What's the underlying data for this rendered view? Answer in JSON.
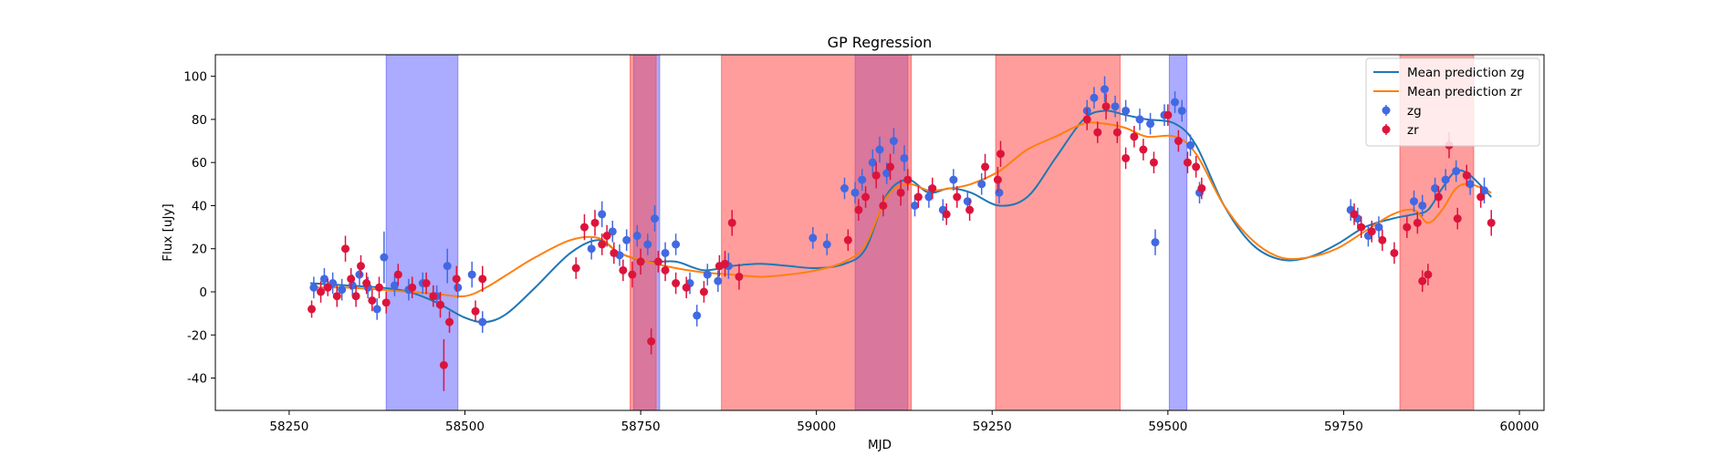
{
  "chart_data": {
    "type": "scatter",
    "title": "GP Regression",
    "xlabel": "MJD",
    "ylabel": "Flux [uJy]",
    "xlim": [
      58145,
      60035
    ],
    "ylim": [
      -55,
      110
    ],
    "xticks": [
      58250,
      58500,
      58750,
      59000,
      59250,
      59500,
      59750,
      60000
    ],
    "yticks": [
      -40,
      -20,
      0,
      20,
      40,
      60,
      80,
      100
    ],
    "legend_position": "top-right",
    "colors": {
      "zg_line": "#1f77b4",
      "zr_line": "#ff7f0e",
      "zg_points": "#4169e1",
      "zr_points": "#dc143c",
      "zg_band": "#6666ff",
      "zr_band": "#ff4d4d"
    },
    "legend": [
      {
        "label": "Mean prediction zg",
        "kind": "line",
        "color": "#1f77b4"
      },
      {
        "label": "Mean prediction zr",
        "kind": "line",
        "color": "#ff7f0e"
      },
      {
        "label": "zg",
        "kind": "point",
        "color": "#4169e1"
      },
      {
        "label": "zr",
        "kind": "point",
        "color": "#dc143c"
      }
    ],
    "shaded_intervals": [
      {
        "band": "zg",
        "x0": 58388,
        "x1": 58490
      },
      {
        "band": "zg",
        "x0": 58740,
        "x1": 58777
      },
      {
        "band": "zg",
        "x0": 59055,
        "x1": 59130
      },
      {
        "band": "zg",
        "x0": 59502,
        "x1": 59527
      },
      {
        "band": "zr",
        "x0": 58735,
        "x1": 58772
      },
      {
        "band": "zr",
        "x0": 58865,
        "x1": 59135
      },
      {
        "band": "zr",
        "x0": 59255,
        "x1": 59432
      },
      {
        "band": "zr",
        "x0": 59830,
        "x1": 59935
      }
    ],
    "series": [
      {
        "name": "Mean prediction zg",
        "type": "line",
        "x": [
          58280,
          58330,
          58380,
          58420,
          58460,
          58500,
          58530,
          58560,
          58600,
          58650,
          58690,
          58720,
          58760,
          58800,
          58840,
          58880,
          58920,
          58960,
          59000,
          59040,
          59070,
          59100,
          59130,
          59160,
          59190,
          59220,
          59260,
          59300,
          59340,
          59380,
          59410,
          59440,
          59470,
          59510,
          59540,
          59580,
          59620,
          59660,
          59700,
          59740,
          59780,
          59820,
          59850,
          59870,
          59890,
          59910,
          59930,
          59960
        ],
        "y": [
          4,
          3,
          2,
          0,
          -5,
          -12,
          -14,
          -10,
          2,
          18,
          24,
          18,
          14,
          14,
          10,
          12,
          13,
          12,
          11,
          13,
          20,
          45,
          52,
          46,
          48,
          46,
          40,
          44,
          62,
          80,
          84,
          82,
          80,
          78,
          68,
          40,
          22,
          15,
          16,
          22,
          30,
          34,
          36,
          38,
          48,
          56,
          54,
          44
        ]
      },
      {
        "name": "Mean prediction zr",
        "type": "line",
        "x": [
          58280,
          58330,
          58380,
          58420,
          58460,
          58500,
          58530,
          58560,
          58600,
          58650,
          58690,
          58720,
          58760,
          58800,
          58840,
          58880,
          58920,
          58960,
          59000,
          59040,
          59070,
          59100,
          59130,
          59160,
          59190,
          59220,
          59260,
          59300,
          59340,
          59380,
          59410,
          59440,
          59470,
          59510,
          59540,
          59580,
          59620,
          59660,
          59700,
          59740,
          59780,
          59820,
          59850,
          59870,
          59890,
          59910,
          59930,
          59960
        ],
        "y": [
          2,
          2,
          1,
          0,
          -1,
          -2,
          2,
          8,
          16,
          24,
          25,
          18,
          14,
          11,
          9,
          8,
          7,
          8,
          10,
          14,
          22,
          44,
          50,
          47,
          48,
          50,
          56,
          66,
          72,
          78,
          78,
          76,
          72,
          72,
          64,
          40,
          24,
          16,
          16,
          20,
          28,
          36,
          38,
          32,
          38,
          48,
          50,
          46
        ]
      },
      {
        "name": "zg",
        "type": "scatter",
        "x": [
          58285,
          58300,
          58312,
          58325,
          58340,
          58350,
          58362,
          58375,
          58385,
          58400,
          58420,
          58440,
          58460,
          58475,
          58490,
          58510,
          58525,
          58680,
          58695,
          58710,
          58720,
          58730,
          58745,
          58760,
          58770,
          58785,
          58800,
          58820,
          58830,
          58845,
          58860,
          58875,
          58995,
          59015,
          59040,
          59055,
          59065,
          59080,
          59090,
          59100,
          59110,
          59125,
          59140,
          59160,
          59180,
          59195,
          59215,
          59235,
          59260,
          59385,
          59395,
          59410,
          59425,
          59440,
          59460,
          59475,
          59482,
          59495,
          59510,
          59520,
          59532,
          59545,
          59760,
          59770,
          59785,
          59800,
          59850,
          59862,
          59880,
          59895,
          59910,
          59930,
          59950
        ],
        "y": [
          2,
          6,
          4,
          1,
          3,
          8,
          2,
          -8,
          16,
          3,
          1,
          4,
          -2,
          12,
          2,
          8,
          -14,
          20,
          36,
          28,
          17,
          24,
          26,
          22,
          34,
          18,
          22,
          4,
          -11,
          8,
          5,
          12,
          25,
          22,
          48,
          46,
          52,
          60,
          66,
          55,
          70,
          62,
          40,
          44,
          38,
          52,
          42,
          50,
          46,
          84,
          90,
          94,
          86,
          84,
          80,
          78,
          23,
          82,
          88,
          84,
          68,
          46,
          38,
          34,
          26,
          30,
          42,
          40,
          48,
          52,
          56,
          50,
          47
        ],
        "yerr": [
          5,
          5,
          5,
          5,
          5,
          5,
          5,
          5,
          12,
          5,
          5,
          5,
          5,
          8,
          5,
          6,
          5,
          5,
          6,
          5,
          5,
          5,
          5,
          5,
          6,
          5,
          5,
          5,
          5,
          5,
          5,
          6,
          5,
          5,
          5,
          5,
          5,
          6,
          6,
          5,
          6,
          6,
          5,
          5,
          5,
          5,
          5,
          5,
          5,
          5,
          5,
          6,
          5,
          5,
          5,
          5,
          6,
          5,
          5,
          5,
          5,
          5,
          5,
          5,
          5,
          5,
          5,
          5,
          5,
          5,
          5,
          5,
          6
        ]
      },
      {
        "name": "zr",
        "type": "scatter",
        "x": [
          58282,
          58295,
          58305,
          58318,
          58330,
          58338,
          58345,
          58352,
          58360,
          58368,
          58378,
          58388,
          58405,
          58425,
          58445,
          58455,
          58465,
          58470,
          58478,
          58488,
          58515,
          58525,
          58658,
          58670,
          58685,
          58695,
          58702,
          58712,
          58725,
          58738,
          58750,
          58765,
          58775,
          58785,
          58800,
          58815,
          58840,
          58862,
          58870,
          58880,
          58890,
          59045,
          59060,
          59070,
          59085,
          59095,
          59105,
          59120,
          59130,
          59145,
          59165,
          59185,
          59200,
          59218,
          59240,
          59258,
          59262,
          59385,
          59400,
          59412,
          59428,
          59440,
          59452,
          59465,
          59480,
          59500,
          59515,
          59528,
          59540,
          59548,
          59765,
          59775,
          59790,
          59805,
          59822,
          59840,
          59855,
          59862,
          59870,
          59885,
          59900,
          59912,
          59925,
          59945,
          59960
        ],
        "y": [
          -8,
          0,
          2,
          -2,
          20,
          6,
          -2,
          12,
          4,
          -4,
          2,
          -5,
          8,
          2,
          4,
          -2,
          -6,
          -34,
          -14,
          6,
          -9,
          6,
          11,
          30,
          32,
          22,
          26,
          18,
          10,
          8,
          14,
          -23,
          14,
          10,
          4,
          2,
          0,
          12,
          13,
          32,
          7,
          24,
          38,
          44,
          54,
          40,
          58,
          46,
          52,
          44,
          48,
          36,
          44,
          38,
          58,
          52,
          64,
          80,
          74,
          86,
          74,
          62,
          72,
          66,
          60,
          82,
          70,
          60,
          58,
          48,
          36,
          30,
          28,
          24,
          18,
          30,
          32,
          5,
          8,
          44,
          68,
          34,
          54,
          44,
          32
        ],
        "yerr": [
          4,
          5,
          4,
          5,
          6,
          5,
          5,
          5,
          5,
          5,
          5,
          5,
          5,
          5,
          5,
          5,
          6,
          12,
          5,
          6,
          5,
          6,
          5,
          6,
          6,
          5,
          5,
          5,
          5,
          6,
          6,
          6,
          5,
          5,
          5,
          5,
          5,
          5,
          6,
          6,
          6,
          5,
          5,
          5,
          6,
          5,
          6,
          6,
          5,
          5,
          5,
          5,
          5,
          5,
          6,
          6,
          6,
          5,
          5,
          6,
          5,
          5,
          5,
          5,
          5,
          5,
          5,
          5,
          5,
          5,
          5,
          5,
          5,
          5,
          5,
          5,
          5,
          5,
          5,
          5,
          6,
          5,
          5,
          5,
          6
        ]
      }
    ]
  }
}
